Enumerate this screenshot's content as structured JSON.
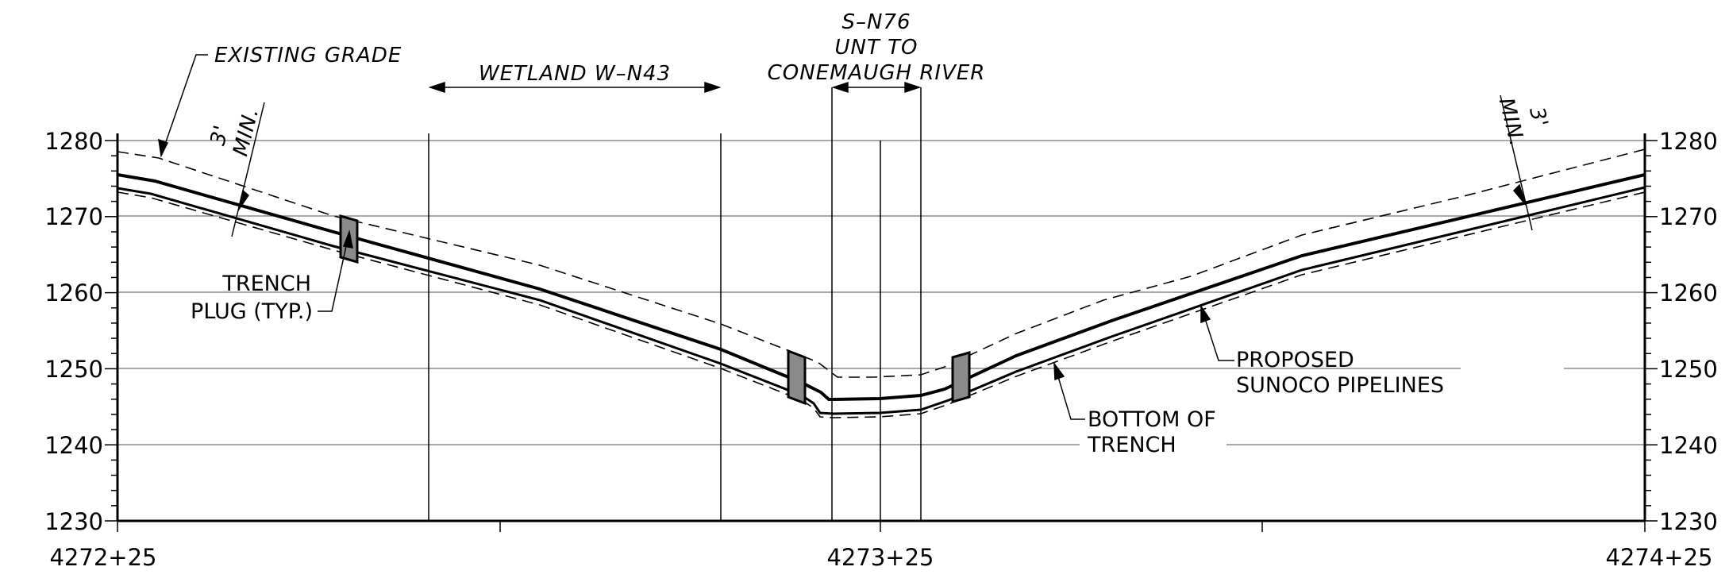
{
  "axes": {
    "elevations": [
      "1280",
      "1270",
      "1260",
      "1250",
      "1240",
      "1230"
    ],
    "stations": [
      "4272+25",
      "4273+25",
      "4274+25"
    ]
  },
  "callouts": {
    "existing_grade": "EXISTING GRADE",
    "wetland": "WETLAND W–N43",
    "stream_id": "S–N76",
    "stream_line2": "UNT TO",
    "stream_line3": "CONEMAUGH RIVER",
    "cover_left_1": "3'",
    "cover_left_2": "MIN.",
    "cover_right_1": "3'",
    "cover_right_2": "MIN.",
    "trench_plug_1": "TRENCH",
    "trench_plug_2": "PLUG (TYP.)",
    "pipelines_1": "PROPOSED",
    "pipelines_2": "SUNOCO PIPELINES",
    "bottom_trench_1": "BOTTOM OF",
    "bottom_trench_2": "TRENCH"
  },
  "colors": {
    "line": "#000000",
    "grid": "#8c8c8c",
    "plug_fill": "#8a8a8a"
  }
}
